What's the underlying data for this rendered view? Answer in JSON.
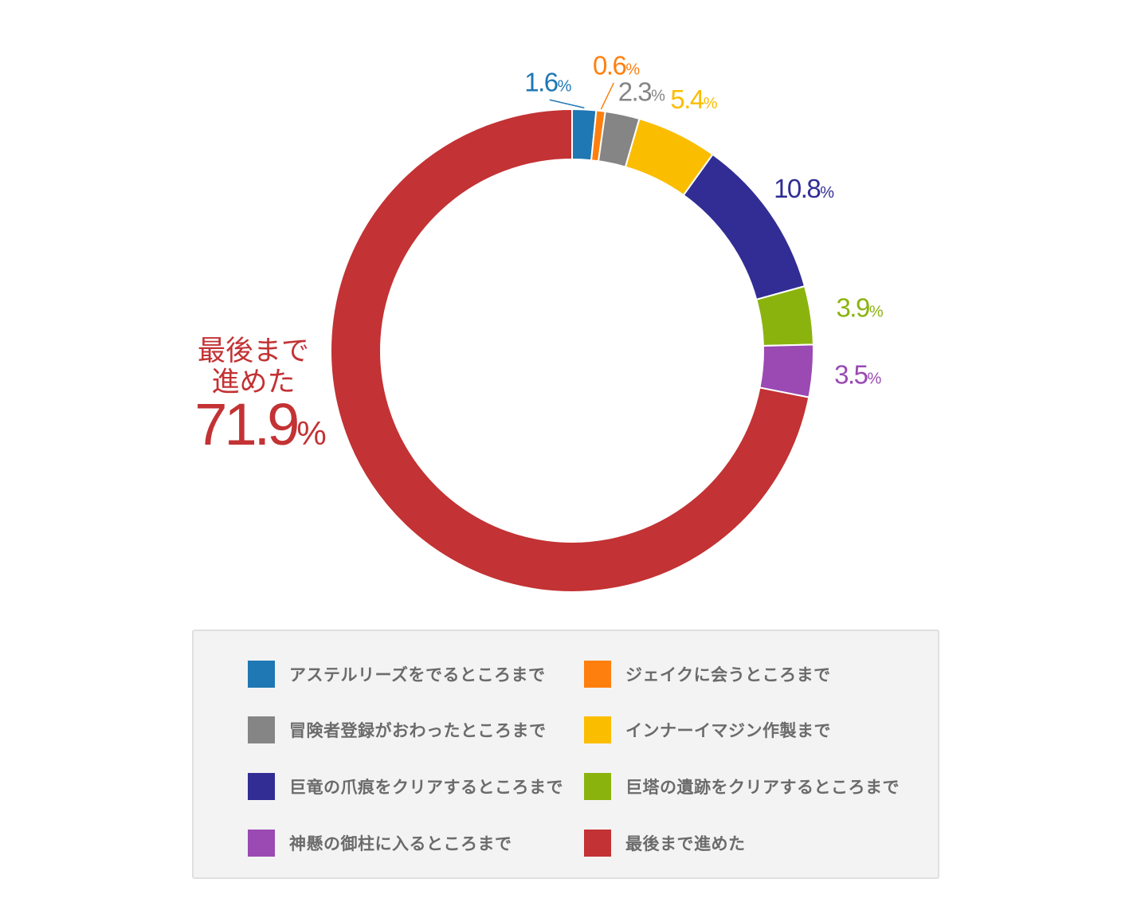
{
  "chart_data": {
    "type": "pie",
    "donut": true,
    "categories": [
      "アステルリーズをでるところまで",
      "ジェイクに会うところまで",
      "冒険者登録がおわったところまで",
      "インナーイマジン作製まで",
      "巨竜の爪痕をクリアするところまで",
      "巨塔の遺跡をクリアするところまで",
      "神懸の御柱に入るところまで",
      "最後まで進めた"
    ],
    "values": [
      1.6,
      0.6,
      2.3,
      5.4,
      10.8,
      3.9,
      3.5,
      71.9
    ],
    "value_labels": [
      "1.6",
      "0.6",
      "2.3",
      "5.4",
      "10.8",
      "3.9",
      "3.5",
      "71.9"
    ],
    "unit": "%",
    "colors": [
      "#1f77b4",
      "#ff7f0e",
      "#858585",
      "#fbbd00",
      "#312d94",
      "#8bb30e",
      "#9a4ab2",
      "#c33234"
    ],
    "big_label": {
      "line1": "最後まで",
      "line2": "進めた",
      "value": "71.9",
      "unit": "%"
    },
    "legend_position": "bottom"
  },
  "legend": {
    "items": [
      {
        "label": "アステルリーズをでるところまで",
        "color": "#1f77b4"
      },
      {
        "label": "ジェイクに会うところまで",
        "color": "#ff7f0e"
      },
      {
        "label": "冒険者登録がおわったところまで",
        "color": "#858585"
      },
      {
        "label": "インナーイマジン作製まで",
        "color": "#fbbd00"
      },
      {
        "label": "巨竜の爪痕をクリアするところまで",
        "color": "#312d94"
      },
      {
        "label": "巨塔の遺跡をクリアするところまで",
        "color": "#8bb30e"
      },
      {
        "label": "神懸の御柱に入るところまで",
        "color": "#9a4ab2"
      },
      {
        "label": "最後まで進めた",
        "color": "#c33234"
      }
    ]
  }
}
